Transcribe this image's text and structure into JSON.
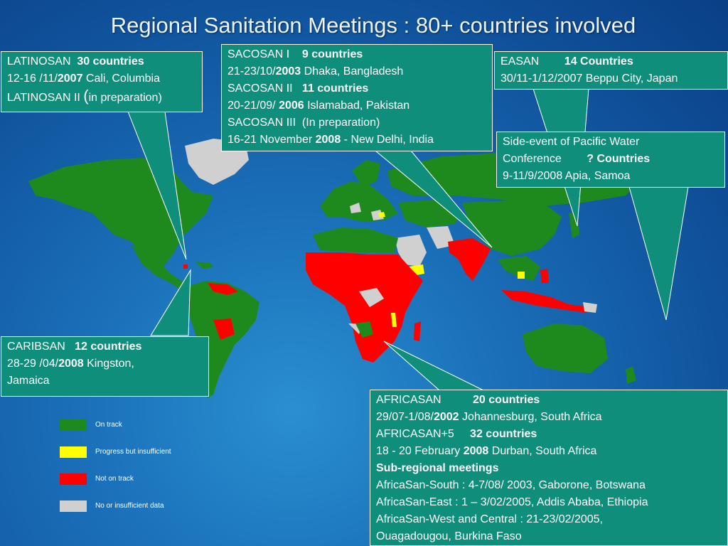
{
  "title": "Regional Sanitation Meetings : 80+ countries involved",
  "colors": {
    "on_track": "#1e8a1e",
    "progress_insufficient": "#ffff00",
    "not_on_track": "#ff0000",
    "no_data": "#d0d0d0",
    "callout": "#0f8e7c"
  },
  "callouts": {
    "latinosan": {
      "l1_a": "LATINOSAN  ",
      "l1_b": "30 countries",
      "l2_a": "12-16 /11/",
      "l2_b": "2007",
      "l2_c": " Cali, Columbia",
      "l3_a": "LATINOSAN II ",
      "l3_b": "(",
      "l3_c": "in preparation)"
    },
    "sacosan": {
      "l1_a": "SACOSAN I    ",
      "l1_b": "9 countries",
      "l2_a": "21-23/10/",
      "l2_b": "2003",
      "l2_c": " Dhaka, Bangladesh",
      "l3_a": "SACOSAN II   ",
      "l3_b": "11 countries",
      "l4_a": "20-21/09/ ",
      "l4_b": "2006",
      "l4_c": " Islamabad, Pakistan",
      "l5": "SACOSAN III  (In preparation)",
      "l6_a": "16-21 November ",
      "l6_b": "2008",
      "l6_c": " - New Delhi, India"
    },
    "easan": {
      "l1_a": "EASAN        ",
      "l1_b": "14 Countries",
      "l2": "30/11-1/12/2007 Beppu City, Japan"
    },
    "pacific": {
      "l1": "Side-event of Pacific Water",
      "l2_a": "Conference        ",
      "l2_b": "? Countries",
      "l3": "9-11/9/2008 Apia, Samoa"
    },
    "caribsan": {
      "l1_a": "CARIBSAN   ",
      "l1_b": "12 countries",
      "l2_a": "28-29 /04/",
      "l2_b": "2008",
      "l2_c": " Kingston,",
      "l3": "Jamaica"
    },
    "africasan": {
      "l1_a": "AFRICASAN          ",
      "l1_b": "20 countries",
      "l2_a": "29/07-1/08/",
      "l2_b": "2002",
      "l2_c": " Johannesburg, South Africa",
      "l3_a": "AFRICASAN+5     ",
      "l3_b": "32 countries",
      "l4_a": "18 - 20 February ",
      "l4_b": "2008",
      "l4_c": " Durban, South Africa",
      "l5": "Sub-regional meetings",
      "l6": "AfricaSan-South : 4-7/08/ 2003, Gaborone, Botswana",
      "l7": "AfricaSan-East : 1 – 3/02/2005, Addis Ababa, Ethiopia",
      "l8": "AfricaSan-West and Central : 21-23/02/2005,",
      "l9": "Ouagadougou, Burkina Faso"
    }
  },
  "legend": [
    {
      "label": "On track",
      "color": "#1e8a1e"
    },
    {
      "label": "Progress but insufficient",
      "color": "#ffff00"
    },
    {
      "label": "Not on track",
      "color": "#ff0000"
    },
    {
      "label": "No or insufficient data",
      "color": "#d0d0d0"
    }
  ]
}
